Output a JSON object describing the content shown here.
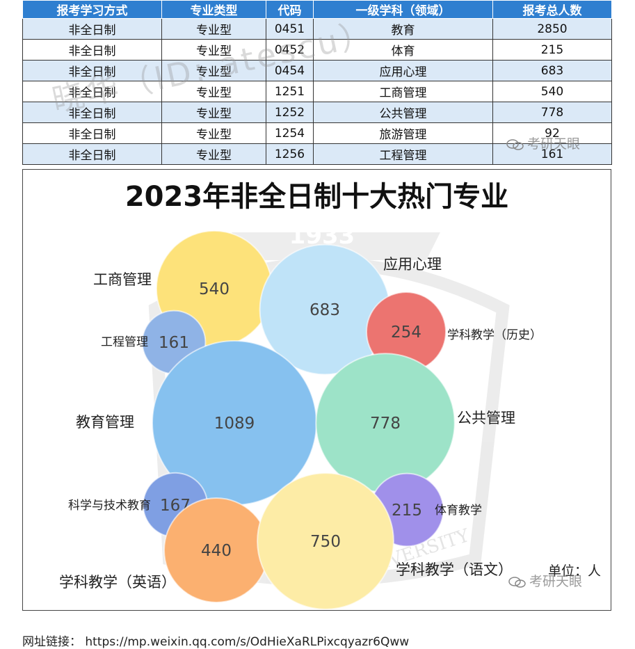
{
  "table": {
    "headers": [
      "报考学习方式",
      "专业类型",
      "代码",
      "一级学科（领域）",
      "报考总人数"
    ],
    "rows": [
      [
        "非全日制",
        "专业型",
        "0451",
        "教育",
        "2850"
      ],
      [
        "非全日制",
        "专业型",
        "0452",
        "体育",
        "215"
      ],
      [
        "非全日制",
        "专业型",
        "0454",
        "应用心理",
        "683"
      ],
      [
        "非全日制",
        "专业型",
        "1251",
        "工商管理",
        "540"
      ],
      [
        "非全日制",
        "专业型",
        "1252",
        "公共管理",
        "778"
      ],
      [
        "非全日制",
        "专业型",
        "1254",
        "旅游管理",
        "92"
      ],
      [
        "非全日制",
        "专业型",
        "1256",
        "工程管理",
        "161"
      ]
    ]
  },
  "watermarks": {
    "table_overlay": "晓华（ID: atescu）",
    "wechat_account": "考研天眼",
    "chart_badge": "1933",
    "chart_arc": "UNIVERSITY"
  },
  "chart_data": {
    "type": "bubble",
    "title": "2023年非全日制十大热门专业",
    "unit_label": "单位：人",
    "bubbles": [
      {
        "label": "工商管理",
        "value": 540,
        "color": "#fde27a"
      },
      {
        "label": "应用心理",
        "value": 683,
        "color": "#bfe3f8"
      },
      {
        "label": "工程管理",
        "value": 161,
        "color": "#8fb3e6"
      },
      {
        "label": "学科教学（历史）",
        "value": 254,
        "color": "#ec7470"
      },
      {
        "label": "教育管理",
        "value": 1089,
        "color": "#86c1ef"
      },
      {
        "label": "公共管理",
        "value": 778,
        "color": "#9de3c8"
      },
      {
        "label": "科学与技术教育",
        "value": 167,
        "color": "#7f9fe3"
      },
      {
        "label": "体育教学",
        "value": 215,
        "color": "#a090ea"
      },
      {
        "label": "学科教学（英语）",
        "value": 440,
        "color": "#fbb070"
      },
      {
        "label": "学科教学（语文）",
        "value": 750,
        "color": "#fdeca6"
      }
    ]
  },
  "source": {
    "label": "网址链接：",
    "url": "https://mp.weixin.qq.com/s/OdHieXaRLPixcqyazr6Qww"
  }
}
